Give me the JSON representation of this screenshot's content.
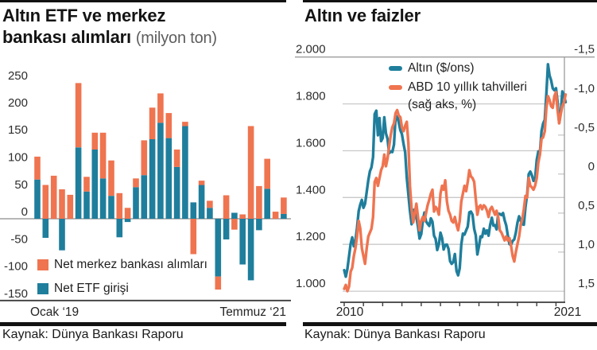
{
  "colors": {
    "teal": "#1f7e9c",
    "orange": "#ef7450",
    "grid_light": "#c9c9c9",
    "grid_mid": "#9c9c9c",
    "axis_dark": "#3c3c3c",
    "rule_black": "#121212"
  },
  "chart_data": [
    {
      "type": "bar",
      "stacked": true,
      "title_line1": "Altın ETF ve merkez",
      "title_line2": "bankası alımları",
      "unit_note": "(milyon ton)",
      "x_start_label": "Ocak ‘19",
      "x_end_label": "Temmuz ‘21",
      "ylim": [
        -150,
        250
      ],
      "ytick_values": [
        250,
        200,
        150,
        100,
        50,
        0,
        -50,
        -100,
        -150
      ],
      "ytick_labels": [
        "250",
        "200",
        "150",
        "100",
        "50",
        "0",
        "-50",
        "-100",
        "-150"
      ],
      "series": [
        {
          "name": "Net ETF girişi",
          "color": "#1f7e9c",
          "values": [
            72,
            -35,
            0,
            -58,
            0,
            131,
            50,
            127,
            74,
            42,
            -34,
            -6,
            58,
            80,
            146,
            176,
            148,
            95,
            170,
            30,
            62,
            20,
            -106,
            -38,
            11,
            -84,
            -113,
            -21,
            55,
            0,
            9
          ]
        },
        {
          "name": "Net merkez bankası alımları",
          "color": "#ef7450",
          "values": [
            42,
            62,
            79,
            54,
            44,
            118,
            27,
            31,
            84,
            65,
            47,
            20,
            16,
            64,
            58,
            54,
            46,
            32,
            8,
            -65,
            8,
            13,
            -24,
            43,
            -20,
            8,
            170,
            60,
            55,
            13,
            30
          ]
        }
      ],
      "source": "Kaynak: Dünya Bankası Raporu"
    },
    {
      "type": "line",
      "title": "Altın ve faizler",
      "x_start_label": "2010",
      "x_end_label": "2021",
      "left_axis": {
        "min": 1000,
        "max": 2000,
        "tick_values": [
          2000,
          1800,
          1600,
          1400,
          1200,
          1000
        ],
        "tick_labels": [
          "2.000",
          "1.800",
          "1.600",
          "1.400",
          "1.200",
          "1.000"
        ]
      },
      "right_axis": {
        "min": -1.5,
        "max": 1.5,
        "inverted": true,
        "tick_values": [
          -1.5,
          -1.0,
          -0.5,
          0,
          0.5,
          1.0,
          1.5
        ],
        "tick_labels": [
          "-1,5",
          "-1,0",
          "-0,5",
          "0",
          "0,5",
          "1,0",
          "1,5"
        ]
      },
      "series": [
        {
          "name": "Altın ($/ons)",
          "axis": "left",
          "color": "#1f7e9c",
          "values": [
            1090,
            1062,
            1095,
            1150,
            1202,
            1230,
            1192,
            1216,
            1270,
            1342,
            1370,
            1390,
            1356,
            1373,
            1424,
            1474,
            1512,
            1529,
            1573,
            1756,
            1771,
            1666,
            1739,
            1641,
            1654,
            1743,
            1674,
            1650,
            1589,
            1597,
            1594,
            1626,
            1744,
            1747,
            1721,
            1688,
            1671,
            1628,
            1593,
            1485,
            1414,
            1343,
            1286,
            1347,
            1348,
            1316,
            1276,
            1225,
            1244,
            1301,
            1336,
            1299,
            1288,
            1279,
            1311,
            1297,
            1237,
            1223,
            1176,
            1201,
            1250,
            1227,
            1178,
            1198,
            1199,
            1181,
            1128,
            1117,
            1125,
            1159,
            1086,
            1068,
            1098,
            1200,
            1246,
            1242,
            1260,
            1276,
            1337,
            1340,
            1327,
            1266,
            1238,
            1157,
            1192,
            1234,
            1231,
            1267,
            1246,
            1260,
            1237,
            1283,
            1314,
            1280,
            1282,
            1264,
            1331,
            1330,
            1325,
            1334,
            1303,
            1281,
            1238,
            1201,
            1198,
            1215,
            1221,
            1250,
            1292,
            1320,
            1301,
            1286,
            1284,
            1359,
            1413,
            1500,
            1511,
            1495,
            1471,
            1479,
            1561,
            1597,
            1592,
            1683,
            1716,
            1732,
            1843,
            1969,
            1922,
            1900,
            1866,
            1858,
            1867,
            1808,
            1718,
            1762,
            1853,
            1835,
            1807
          ]
        },
        {
          "name": "ABD 10 yıllık tahvilleri",
          "name_note": "(sağ aks, %)",
          "axis": "right",
          "color": "#ef7450",
          "values": [
            1.47,
            1.42,
            1.5,
            1.44,
            1.25,
            1.2,
            1.05,
            0.95,
            0.8,
            0.6,
            0.7,
            0.95,
            1.05,
            1.15,
            0.95,
            0.8,
            0.75,
            0.7,
            0.55,
            0.1,
            0.05,
            0.15,
            0.05,
            -0.05,
            -0.1,
            -0.25,
            -0.1,
            -0.2,
            -0.35,
            -0.5,
            -0.6,
            -0.65,
            -0.78,
            -0.82,
            -0.75,
            -0.73,
            -0.6,
            -0.55,
            -0.62,
            -0.67,
            -0.4,
            0.15,
            0.45,
            0.62,
            0.5,
            0.38,
            0.55,
            0.72,
            0.6,
            0.55,
            0.6,
            0.5,
            0.4,
            0.33,
            0.25,
            0.2,
            0.48,
            0.42,
            0.45,
            0.52,
            0.25,
            0.15,
            0.2,
            0.08,
            0.35,
            0.47,
            0.52,
            0.6,
            0.62,
            0.55,
            0.65,
            0.72,
            0.6,
            0.35,
            0.25,
            0.15,
            0.22,
            0.1,
            -0.05,
            0.03,
            0.05,
            0.1,
            0.32,
            0.52,
            0.42,
            0.4,
            0.45,
            0.4,
            0.42,
            0.47,
            0.55,
            0.45,
            0.42,
            0.47,
            0.52,
            0.47,
            0.55,
            0.72,
            0.75,
            0.8,
            0.85,
            0.8,
            0.85,
            0.82,
            0.92,
            1.05,
            1.12,
            1.0,
            0.9,
            0.8,
            0.65,
            0.58,
            0.45,
            0.28,
            0.3,
            0.05,
            0.15,
            0.17,
            0.2,
            0.15,
            0.05,
            -0.15,
            -0.25,
            -0.45,
            -0.47,
            -0.55,
            -0.85,
            -1.0,
            -0.95,
            -0.87,
            -0.85,
            -1.0,
            -1.05,
            -0.82,
            -0.65,
            -0.77,
            -0.87,
            -0.92,
            -1.02
          ]
        }
      ],
      "source": "Kaynak: Dünya Bankası Raporu"
    }
  ]
}
